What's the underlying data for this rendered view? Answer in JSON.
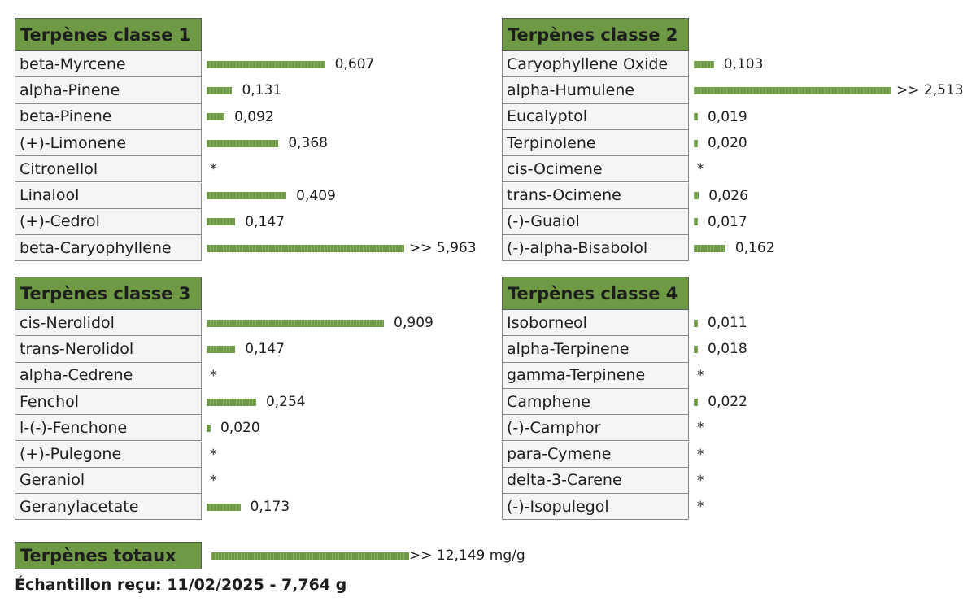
{
  "bar_color": "#6f9a45",
  "groups": [
    {
      "title": "Terpènes classe 1",
      "rows": [
        {
          "name": "beta-Myrcene",
          "value": 0.607,
          "label": "0,607"
        },
        {
          "name": "alpha-Pinene",
          "value": 0.131,
          "label": "0,131"
        },
        {
          "name": "beta-Pinene",
          "value": 0.092,
          "label": "0,092"
        },
        {
          "name": "(+)-Limonene",
          "value": 0.368,
          "label": "0,368"
        },
        {
          "name": "Citronellol",
          "value": null,
          "label": "*"
        },
        {
          "name": "Linalool",
          "value": 0.409,
          "label": "0,409"
        },
        {
          "name": "(+)-Cedrol",
          "value": 0.147,
          "label": "0,147"
        },
        {
          "name": "beta-Caryophyllene",
          "value": 5.963,
          "label": ">> 5,963"
        }
      ]
    },
    {
      "title": "Terpènes classe 2",
      "rows": [
        {
          "name": "Caryophyllene Oxide",
          "value": 0.103,
          "label": "0,103"
        },
        {
          "name": "alpha-Humulene",
          "value": 2.513,
          "label": ">> 2,513"
        },
        {
          "name": "Eucalyptol",
          "value": 0.019,
          "label": "0,019"
        },
        {
          "name": "Terpinolene",
          "value": 0.02,
          "label": "0,020"
        },
        {
          "name": "cis-Ocimene",
          "value": null,
          "label": "*"
        },
        {
          "name": "trans-Ocimene",
          "value": 0.026,
          "label": "0,026"
        },
        {
          "name": "(-)-Guaiol",
          "value": 0.017,
          "label": "0,017"
        },
        {
          "name": "(-)-alpha-Bisabolol",
          "value": 0.162,
          "label": "0,162"
        }
      ]
    },
    {
      "title": "Terpènes classe 3",
      "rows": [
        {
          "name": "cis-Nerolidol",
          "value": 0.909,
          "label": "0,909"
        },
        {
          "name": "trans-Nerolidol",
          "value": 0.147,
          "label": "0,147"
        },
        {
          "name": "alpha-Cedrene",
          "value": null,
          "label": "*"
        },
        {
          "name": "Fenchol",
          "value": 0.254,
          "label": "0,254"
        },
        {
          "name": "l-(-)-Fenchone",
          "value": 0.02,
          "label": "0,020"
        },
        {
          "name": "(+)-Pulegone",
          "value": null,
          "label": "*"
        },
        {
          "name": "Geraniol",
          "value": null,
          "label": "*"
        },
        {
          "name": "Geranylacetate",
          "value": 0.173,
          "label": "0,173"
        }
      ]
    },
    {
      "title": "Terpènes classe 4",
      "rows": [
        {
          "name": "Isoborneol",
          "value": 0.011,
          "label": "0,011"
        },
        {
          "name": "alpha-Terpinene",
          "value": 0.018,
          "label": "0,018"
        },
        {
          "name": "gamma-Terpinene",
          "value": null,
          "label": "*"
        },
        {
          "name": "Camphene",
          "value": 0.022,
          "label": "0,022"
        },
        {
          "name": "(-)-Camphor",
          "value": null,
          "label": "*"
        },
        {
          "name": "para-Cymene",
          "value": null,
          "label": "*"
        },
        {
          "name": "delta-3-Carene",
          "value": null,
          "label": "*"
        },
        {
          "name": "(-)-Isopulegol",
          "value": null,
          "label": "*"
        }
      ]
    }
  ],
  "total": {
    "title": "Terpènes totaux",
    "value": 12.149,
    "label": ">> 12,149 mg/g"
  },
  "footer": "Échantillon reçu: 11/02/2025 - 7,764 g"
}
